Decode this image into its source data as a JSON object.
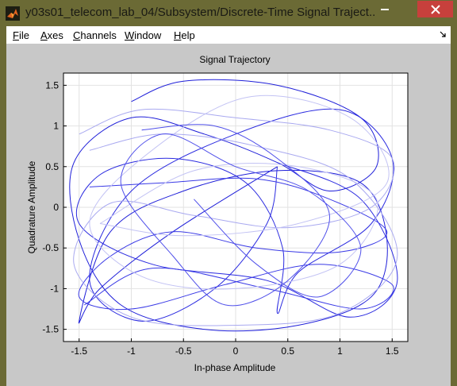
{
  "window": {
    "title": "y03s01_telecom_lab_04/Subsystem/Discrete-Time Signal Traject..."
  },
  "menu": {
    "items": [
      {
        "label": "File",
        "mnemonic": "F",
        "rest": "ile"
      },
      {
        "label": "Axes",
        "mnemonic": "A",
        "rest": "xes"
      },
      {
        "label": "Channels",
        "mnemonic": "C",
        "rest": "hannels"
      },
      {
        "label": "Window",
        "mnemonic": "W",
        "rest": "indow"
      },
      {
        "label": "Help",
        "mnemonic": "H",
        "rest": "elp"
      }
    ]
  },
  "icons": {
    "app": "matlab-icon",
    "close": "close-icon",
    "dock": "dock-arrow-icon"
  },
  "colors": {
    "title_bar": "#6b6a35",
    "close_button": "#c7403c",
    "trajectory_dark": "#1f1fd9",
    "trajectory_light": "#a9a9f0",
    "figure_background": "#c8c8c8"
  },
  "chart_data": {
    "type": "line",
    "title": "Signal Trajectory",
    "xlabel": "In-phase Amplitude",
    "ylabel": "Quadrature Amplitude",
    "xlim": [
      -1.65,
      1.65
    ],
    "ylim": [
      -1.65,
      1.65
    ],
    "xticks": [
      -1.5,
      -1,
      -0.5,
      0,
      0.5,
      1,
      1.5
    ],
    "xtick_labels": [
      "-1.5",
      "-1",
      "-0.5",
      "0",
      "0.5",
      "1",
      "1.5"
    ],
    "yticks": [
      1.5,
      1,
      0.5,
      0,
      -0.5,
      -1,
      -1.5
    ],
    "ytick_labels": [
      "1.5",
      "1",
      "0.5",
      "0",
      "-0.5",
      "-1",
      "-1.5"
    ],
    "grid": true,
    "series": [
      {
        "color": "#1f1fd9",
        "x": [
          -1.0,
          -0.5,
          0.4,
          1.2,
          1.35,
          0.9,
          0.4,
          -0.3,
          -1.0,
          -1.55,
          -1.5,
          -1.1,
          -0.3,
          0.6,
          1.3,
          1.45,
          1.2,
          0.4,
          -0.5,
          -1.2,
          -1.5,
          -1.3,
          -0.6,
          0.4
        ],
        "y": [
          1.3,
          1.55,
          1.5,
          1.1,
          0.5,
          0.2,
          0.55,
          0.9,
          1.1,
          0.55,
          -0.4,
          -1.2,
          -1.5,
          -1.45,
          -1.1,
          -0.4,
          0.3,
          0.45,
          0.2,
          -0.3,
          -1.4,
          -1.0,
          -0.3,
          0.5
        ]
      },
      {
        "color": "#2b2be0",
        "x": [
          0.4,
          0.3,
          -0.2,
          -0.9,
          -1.4,
          -1.0,
          0.0,
          1.0,
          1.5,
          1.3,
          0.6,
          0.4,
          0.45,
          0.1,
          -0.6,
          -1.3,
          -1.5,
          -0.8,
          0.3,
          1.1,
          1.55,
          1.2,
          0.4
        ],
        "y": [
          0.5,
          -0.2,
          -1.0,
          -1.4,
          -0.9,
          0.2,
          0.9,
          1.2,
          0.6,
          -0.2,
          -0.8,
          -1.3,
          -0.5,
          0.3,
          0.6,
          0.4,
          -0.2,
          -0.7,
          -0.9,
          -1.35,
          -0.9,
          0.1,
          0.55
        ]
      },
      {
        "color": "#3a3ae6",
        "x": [
          -1.4,
          -0.7,
          0.2,
          0.9,
          1.45,
          1.0,
          0.2,
          -0.6,
          -1.2,
          -1.5,
          -1.0,
          -0.1,
          0.8,
          1.5,
          1.2,
          0.3,
          -0.8,
          -1.45
        ],
        "y": [
          0.25,
          0.3,
          0.35,
          0.1,
          -0.3,
          -0.55,
          -0.5,
          -0.3,
          -0.6,
          -1.1,
          -1.25,
          -0.95,
          -0.7,
          -0.95,
          -1.25,
          -1.0,
          -0.75,
          -1.2
        ]
      },
      {
        "color": "#a9a9f0",
        "x": [
          -1.5,
          -0.9,
          0.0,
          0.9,
          1.5,
          1.3,
          0.5,
          -0.4,
          -1.2,
          -1.55,
          -1.0,
          0.0,
          1.0,
          1.55,
          1.1,
          0.2,
          -0.7,
          -1.4
        ],
        "y": [
          0.9,
          1.2,
          1.1,
          0.95,
          0.6,
          0.0,
          -0.25,
          -0.1,
          0.05,
          -0.7,
          -1.35,
          -1.45,
          -1.3,
          -0.6,
          0.35,
          0.75,
          0.9,
          0.7
        ]
      },
      {
        "color": "#c3c3f4",
        "x": [
          -1.3,
          -0.4,
          0.6,
          1.35,
          1.0,
          0.0,
          -0.9,
          -1.4,
          -0.9,
          0.1,
          1.1,
          1.45,
          0.6,
          -0.5,
          -1.3
        ],
        "y": [
          -0.2,
          0.45,
          0.5,
          0.1,
          -0.7,
          -1.0,
          -0.85,
          -0.2,
          0.6,
          1.35,
          1.1,
          0.3,
          -0.2,
          -0.35,
          -0.2
        ]
      },
      {
        "color": "#5050ea",
        "x": [
          -0.9,
          -0.2,
          0.4,
          0.9,
          0.5,
          -0.1,
          -0.6,
          -1.1,
          -0.7,
          0.0,
          0.7,
          1.2,
          0.8,
          0.2,
          -0.4
        ],
        "y": [
          0.95,
          1.0,
          0.6,
          -0.1,
          -0.9,
          -1.2,
          -0.6,
          0.3,
          0.9,
          0.5,
          0.2,
          -0.5,
          -1.1,
          -0.7,
          0.1
        ]
      }
    ]
  }
}
